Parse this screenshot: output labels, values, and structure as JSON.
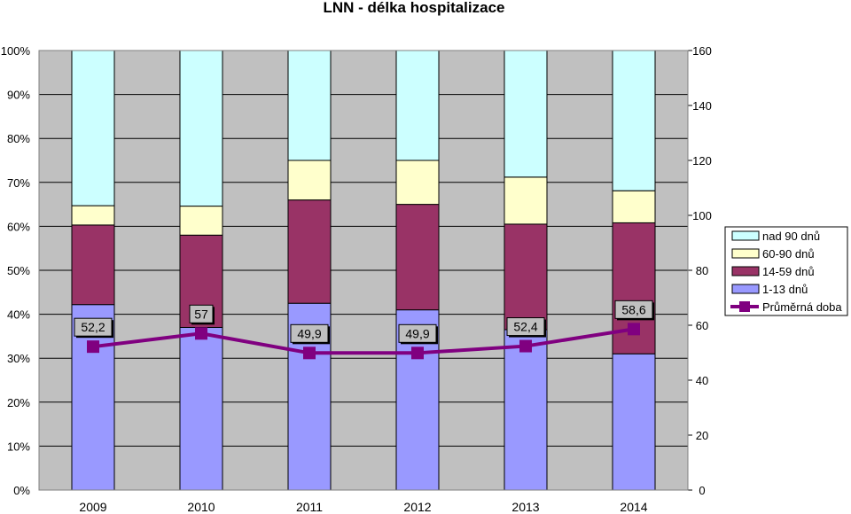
{
  "chart_data": {
    "type": "bar",
    "title": "LNN - délka hospitalizace",
    "categories": [
      "2009",
      "2010",
      "2011",
      "2012",
      "2013",
      "2014"
    ],
    "series": [
      {
        "name": "1-13 dnů",
        "kind": "stacked-percent-bar",
        "color": "#9999ff",
        "values": [
          42.2,
          37.0,
          42.5,
          41.0,
          36.5,
          31.0
        ]
      },
      {
        "name": "14-59 dnů",
        "kind": "stacked-percent-bar",
        "color": "#993366",
        "values": [
          18.1,
          21.0,
          23.5,
          24.0,
          24.0,
          29.8
        ]
      },
      {
        "name": "60-90 dnů",
        "kind": "stacked-percent-bar",
        "color": "#ffffcc",
        "values": [
          4.4,
          6.6,
          9.0,
          10.0,
          10.7,
          7.3
        ]
      },
      {
        "name": "nad 90 dnů",
        "kind": "stacked-percent-bar",
        "color": "#ccffff",
        "values": [
          35.3,
          35.4,
          25.0,
          25.0,
          28.8,
          31.9
        ]
      },
      {
        "name": "Průměrná doba",
        "kind": "line-secondary-axis",
        "color": "#800080",
        "values": [
          52.2,
          57,
          49.9,
          49.9,
          52.4,
          58.6
        ],
        "labels": [
          "52,2",
          "57",
          "49,9",
          "49,9",
          "52,4",
          "58,6"
        ]
      }
    ],
    "y_left": {
      "min": 0,
      "max": 100,
      "step": 10,
      "format": "percent",
      "ticks": [
        "0%",
        "10%",
        "20%",
        "30%",
        "40%",
        "50%",
        "60%",
        "70%",
        "80%",
        "90%",
        "100%"
      ]
    },
    "y_right": {
      "min": 0,
      "max": 160,
      "step": 20,
      "ticks": [
        "0",
        "20",
        "40",
        "60",
        "80",
        "100",
        "120",
        "140",
        "160"
      ]
    },
    "legend": {
      "placement": "right",
      "entries": [
        "nad 90 dnů",
        "60-90 dnů",
        "14-59 dnů",
        "1-13 dnů",
        "Průměrná doba"
      ]
    },
    "plot_background": "#c0c0c0",
    "grid": true
  }
}
